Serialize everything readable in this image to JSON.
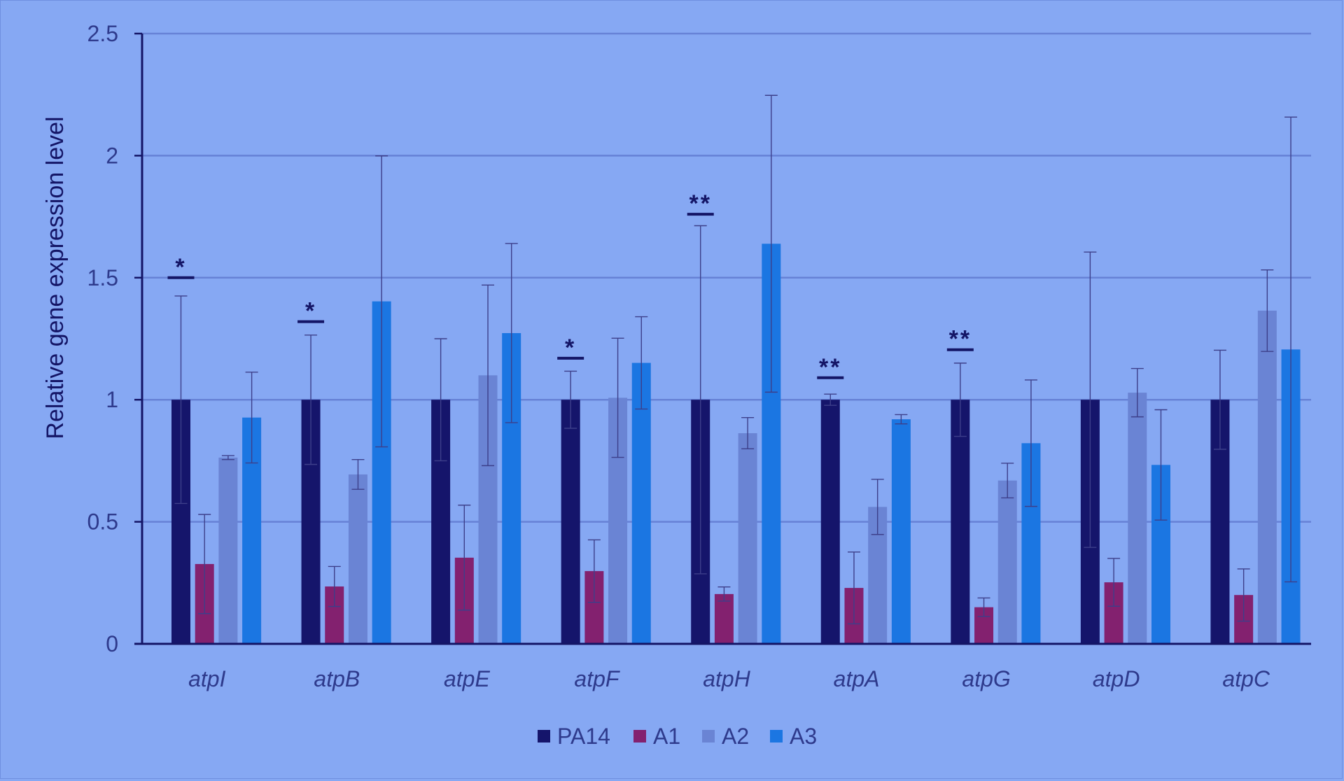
{
  "chart_data": {
    "type": "bar",
    "ylabel": "Relative gene expression level",
    "xlabel": "",
    "ylim": [
      0,
      2.5
    ],
    "yticks": [
      "0",
      "0.5",
      "1",
      "1.5",
      "2",
      "2.5"
    ],
    "ytick_values": [
      0,
      0.5,
      1,
      1.5,
      2,
      2.5
    ],
    "grid": true,
    "legend_position": "bottom-center",
    "categories": [
      "atpI",
      "atpB",
      "atpE",
      "atpF",
      "atpH",
      "atpA",
      "atpG",
      "atpD",
      "atpC"
    ],
    "series": [
      {
        "name": "PA14",
        "color": "#15156b",
        "values": [
          1,
          1,
          1,
          1,
          1,
          1,
          1,
          1,
          1
        ],
        "errors": [
          0.425,
          0.265,
          0.25,
          0.117,
          0.713,
          0.023,
          0.15,
          0.605,
          0.203
        ]
      },
      {
        "name": "A1",
        "color": "#83216f",
        "values": [
          0.327,
          0.235,
          0.353,
          0.298,
          0.204,
          0.229,
          0.15,
          0.252,
          0.2
        ],
        "errors": [
          0.203,
          0.082,
          0.215,
          0.128,
          0.029,
          0.147,
          0.038,
          0.098,
          0.107
        ]
      },
      {
        "name": "A2",
        "color": "#6a84d4",
        "values": [
          0.763,
          0.694,
          1.1,
          1.008,
          0.863,
          0.561,
          0.669,
          1.029,
          1.365
        ],
        "errors": [
          0.008,
          0.061,
          0.37,
          0.244,
          0.064,
          0.113,
          0.071,
          0.099,
          0.167
        ]
      },
      {
        "name": "A3",
        "color": "#1b76e2",
        "values": [
          0.927,
          1.403,
          1.273,
          1.151,
          1.639,
          0.92,
          0.822,
          0.733,
          1.206
        ],
        "errors": [
          0.186,
          0.596,
          0.367,
          0.189,
          0.608,
          0.019,
          0.259,
          0.226,
          0.952
        ]
      }
    ],
    "annotations": [
      {
        "category": "atpI",
        "text": "*",
        "y": 1.5
      },
      {
        "category": "atpB",
        "text": "*",
        "y": 1.32
      },
      {
        "category": "atpF",
        "text": "*",
        "y": 1.17
      },
      {
        "category": "atpH",
        "text": "**",
        "y": 1.76
      },
      {
        "category": "atpA",
        "text": "**",
        "y": 1.09
      },
      {
        "category": "atpG",
        "text": "**",
        "y": 1.205
      }
    ]
  }
}
